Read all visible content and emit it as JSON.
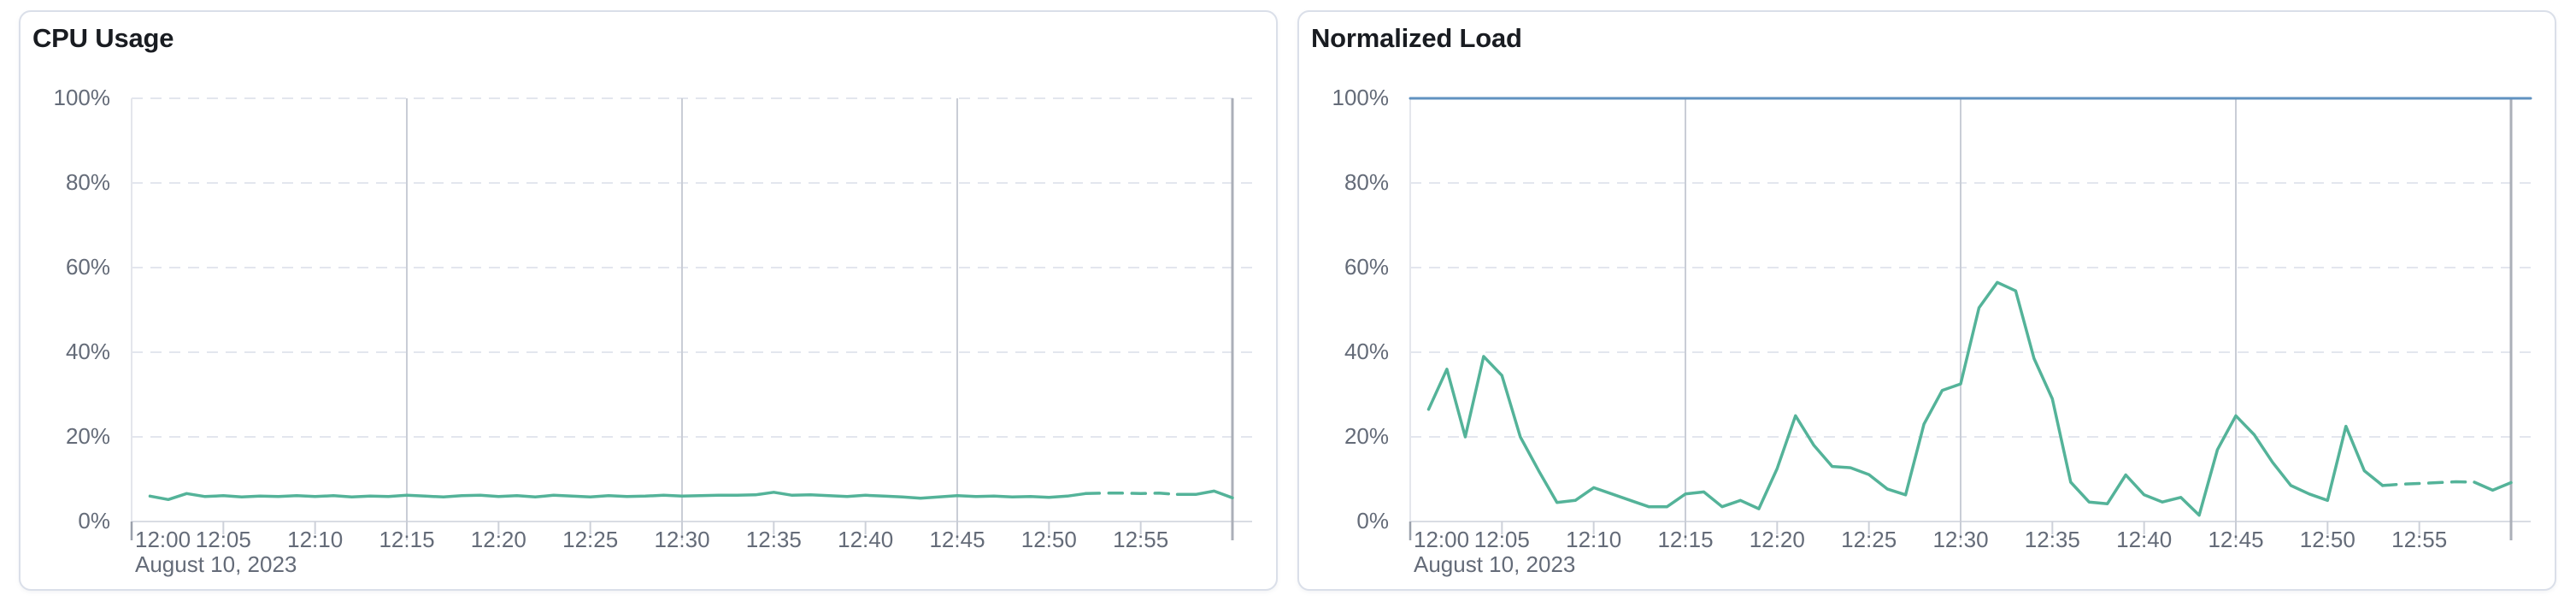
{
  "theme": {
    "page_bg": "#ffffff",
    "panel_bg": "#ffffff",
    "panel_border": "#dadfe9",
    "title_color": "#191c21",
    "axis_label_color": "#646b78",
    "grid_dashed_color": "#e3e6ee",
    "grid_quarter_color": "#c9cdd6",
    "boundary_left_color": "#e4e6ec",
    "left_tick_color": "#9ba1ac",
    "now_line_color": "#abafb8",
    "axis_line_color": "#d9dce3",
    "tick_color": "#cdd1d9",
    "series_green": "#54b399",
    "series_blue": "#6092c0"
  },
  "chart_data": [
    {
      "type": "line",
      "title": "CPU Usage",
      "date_label": "August 10, 2023",
      "x_axis": {
        "domain_minutes": [
          0,
          60
        ],
        "tick_interval_minutes": 5,
        "tick_labels": [
          "12:00",
          "12:05",
          "12:10",
          "12:15",
          "12:20",
          "12:25",
          "12:30",
          "12:35",
          "12:40",
          "12:45",
          "12:50",
          "12:55"
        ]
      },
      "y_axis": {
        "ylim": [
          0,
          100
        ],
        "tick_labels": [
          "0%",
          "20%",
          "40%",
          "60%",
          "80%",
          "100%"
        ],
        "tick_values": [
          0,
          20,
          40,
          60,
          80,
          100
        ]
      },
      "grid": {
        "horizontal_dashed_at": [
          20,
          40,
          60,
          80,
          100
        ],
        "vertical_solid_at_minutes": [
          15,
          30,
          45
        ],
        "now_line_minute": 60
      },
      "legend": "none",
      "series": [
        {
          "name": "cpu-usage",
          "color_key": "series_green",
          "start_minute": 1,
          "interval_minutes": 1,
          "dashed_window_minutes": [
            52,
            57
          ],
          "values_pct": [
            6.0,
            5.2,
            6.6,
            5.9,
            6.1,
            5.8,
            6.0,
            5.9,
            6.1,
            5.9,
            6.1,
            5.8,
            6.0,
            5.9,
            6.2,
            6.0,
            5.8,
            6.1,
            6.2,
            5.9,
            6.1,
            5.8,
            6.2,
            6.0,
            5.8,
            6.1,
            5.9,
            6.0,
            6.2,
            6.0,
            6.1,
            6.2,
            6.2,
            6.3,
            6.9,
            6.2,
            6.3,
            6.1,
            5.9,
            6.2,
            6.0,
            5.8,
            5.5,
            5.8,
            6.1,
            5.9,
            6.0,
            5.8,
            5.9,
            5.7,
            6.0,
            6.6,
            6.7,
            6.7,
            6.6,
            6.7,
            6.4,
            6.4,
            7.2,
            5.6
          ]
        }
      ]
    },
    {
      "type": "line",
      "title": "Normalized Load",
      "date_label": "August 10, 2023",
      "x_axis": {
        "domain_minutes": [
          0,
          60
        ],
        "tick_interval_minutes": 5,
        "tick_labels": [
          "12:00",
          "12:05",
          "12:10",
          "12:15",
          "12:20",
          "12:25",
          "12:30",
          "12:35",
          "12:40",
          "12:45",
          "12:50",
          "12:55"
        ]
      },
      "y_axis": {
        "ylim": [
          0,
          100
        ],
        "tick_labels": [
          "0%",
          "20%",
          "40%",
          "60%",
          "80%",
          "100%"
        ],
        "tick_values": [
          0,
          20,
          40,
          60,
          80,
          100
        ]
      },
      "grid": {
        "horizontal_dashed_at": [
          20,
          40,
          60,
          80,
          100
        ],
        "vertical_solid_at_minutes": [
          15,
          30,
          45
        ],
        "now_line_minute": 60
      },
      "legend": "none",
      "series": [
        {
          "name": "load-limit",
          "color_key": "series_blue",
          "constant_pct": 100
        },
        {
          "name": "normalized-load",
          "color_key": "series_green",
          "start_minute": 1,
          "interval_minutes": 1,
          "dashed_window_minutes": [
            53,
            58
          ],
          "values_pct": [
            26.5,
            36.0,
            20.0,
            39.0,
            34.5,
            20.0,
            12.0,
            4.5,
            5.0,
            8.0,
            6.5,
            5.0,
            3.5,
            3.5,
            6.5,
            7.0,
            3.5,
            5.0,
            3.0,
            12.5,
            25.0,
            18.0,
            13.0,
            12.7,
            11.1,
            7.7,
            6.3,
            23.0,
            31.0,
            32.5,
            50.5,
            56.5,
            54.5,
            38.5,
            29.0,
            9.3,
            4.6,
            4.2,
            11.0,
            6.3,
            4.6,
            5.7,
            1.5,
            17.0,
            25.0,
            20.5,
            14.0,
            8.5,
            6.5,
            5.0,
            22.5,
            12.0,
            8.5,
            8.8,
            9.0,
            9.2,
            9.4,
            9.3,
            7.4,
            9.2
          ]
        }
      ]
    }
  ]
}
